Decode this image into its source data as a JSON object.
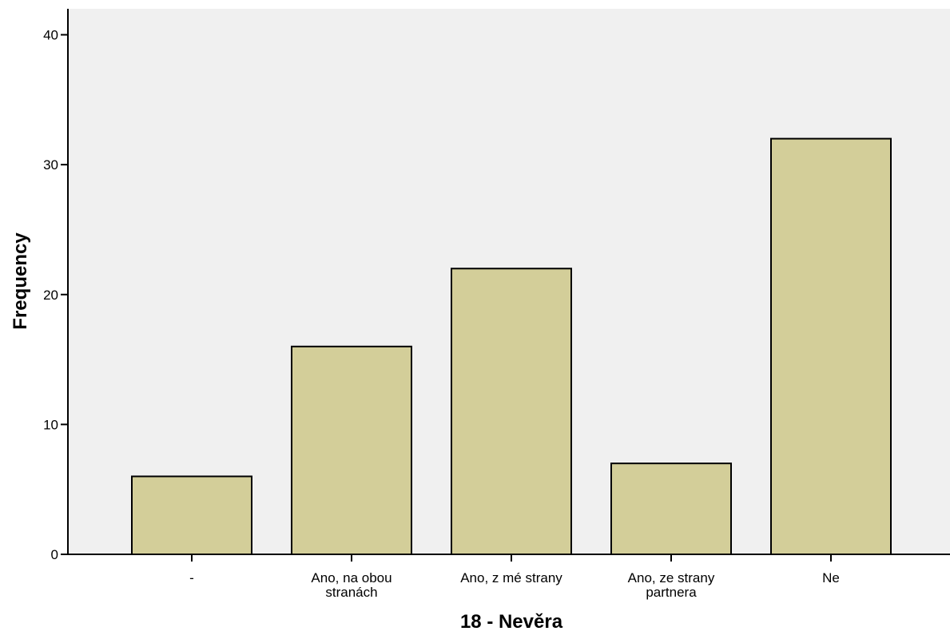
{
  "chart_data": {
    "type": "bar",
    "categories": [
      [
        "-"
      ],
      [
        "Ano, na obou",
        "stranách"
      ],
      [
        "Ano, z mé strany"
      ],
      [
        "Ano, ze strany",
        "partnera"
      ],
      [
        "Ne"
      ]
    ],
    "values": [
      6,
      16,
      22,
      7,
      32
    ],
    "xlabel": "18 - Nevěra",
    "ylabel": "Frequency",
    "ylim": [
      0,
      42
    ],
    "yticks": [
      0,
      10,
      20,
      30,
      40
    ],
    "grid": false,
    "colors": {
      "bar_fill": "#d3ce99",
      "plot_background": "#f0f0f0",
      "axis": "#000000"
    }
  }
}
